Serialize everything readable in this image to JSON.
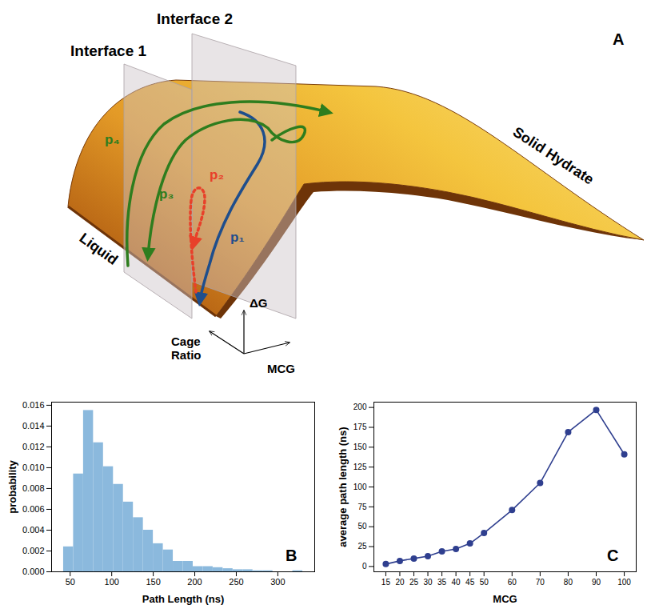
{
  "diagram": {
    "panel_label": "A",
    "interfaces": [
      "Interface 1",
      "Interface 2"
    ],
    "regions": {
      "liquid": "Liquid",
      "solid": "Solid Hydrate"
    },
    "axes": {
      "vertical": "ΔG",
      "depth": "Cage Ratio",
      "horizontal": "MCG"
    },
    "paths": [
      {
        "label": "p₁",
        "color": "#1f4e8c",
        "line_style": "solid"
      },
      {
        "label": "p₂",
        "color": "#e8402a",
        "line_style": "dotted"
      },
      {
        "label": "p₃",
        "color": "#2e7d1e",
        "line_style": "solid"
      },
      {
        "label": "p₄",
        "color": "#2e7d1e",
        "line_style": "solid"
      }
    ]
  },
  "chart_data": [
    {
      "type": "histogram",
      "panel_label": "B",
      "x_label": "Path Length (ns)",
      "y_label": "probability",
      "bins": [
        42,
        54,
        66,
        78,
        90,
        102,
        114,
        126,
        138,
        150,
        162,
        174,
        186,
        198,
        210,
        222,
        234,
        246,
        258,
        270,
        282,
        294,
        306,
        318,
        330
      ],
      "values": [
        0.0024,
        0.0094,
        0.0155,
        0.0124,
        0.0101,
        0.0084,
        0.0067,
        0.0052,
        0.004,
        0.0027,
        0.0021,
        0.001,
        0.001,
        0.0005,
        0.0005,
        0.0004,
        0.0003,
        0.0002,
        0.0002,
        0.0001,
        0.0001,
        0,
        0,
        0.0001
      ],
      "color": "#8bb9dd",
      "xlim": [
        27.6,
        344.4
      ],
      "xticks": [
        50,
        100,
        150,
        200,
        250,
        300
      ],
      "ylim": [
        0,
        0.0163
      ],
      "yticks": [
        {
          "value": 0,
          "label": "0.000"
        },
        {
          "value": 0.002,
          "label": "0.002"
        },
        {
          "value": 0.004,
          "label": "0.004"
        },
        {
          "value": 0.006,
          "label": "0.006"
        },
        {
          "value": 0.008,
          "label": "0.008"
        },
        {
          "value": 0.01,
          "label": "0.010"
        },
        {
          "value": 0.012,
          "label": "0.012"
        },
        {
          "value": 0.014,
          "label": "0.014"
        },
        {
          "value": 0.016,
          "label": "0.016"
        }
      ]
    },
    {
      "type": "line",
      "panel_label": "C",
      "x_label": "MCG",
      "y_label": "average path length (ns)",
      "x": [
        15,
        20,
        25,
        30,
        35,
        40,
        45,
        50,
        60,
        70,
        80,
        90,
        100
      ],
      "values": [
        3,
        7,
        10,
        13,
        19,
        22,
        29,
        42,
        71,
        105,
        169,
        197,
        141
      ],
      "color": "#2f3f8f",
      "marker": "circle",
      "xlim": [
        10.75,
        104.25
      ],
      "xticks": [
        15,
        20,
        25,
        30,
        35,
        40,
        45,
        50,
        60,
        70,
        80,
        90,
        100
      ],
      "ylim": [
        -6.7,
        206.7
      ],
      "yticks": [
        0,
        25,
        50,
        75,
        100,
        125,
        150,
        175,
        200
      ]
    }
  ]
}
